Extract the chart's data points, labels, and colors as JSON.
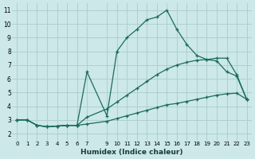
{
  "xlabel": "Humidex (Indice chaleur)",
  "bg_color": "#cce8e8",
  "grid_color": "#aacccc",
  "line_color": "#1a6b5a",
  "xlim": [
    -0.5,
    23.5
  ],
  "ylim": [
    1.5,
    11.5
  ],
  "xticks": [
    0,
    1,
    2,
    3,
    4,
    5,
    6,
    7,
    9,
    10,
    11,
    12,
    13,
    14,
    15,
    16,
    17,
    18,
    19,
    20,
    21,
    22,
    23
  ],
  "yticks": [
    2,
    3,
    4,
    5,
    6,
    7,
    8,
    9,
    10,
    11
  ],
  "series1_x": [
    0,
    1,
    2,
    3,
    4,
    5,
    6,
    7,
    9,
    10,
    11,
    12,
    13,
    14,
    15,
    16,
    17,
    18,
    19,
    20,
    21,
    22,
    23
  ],
  "series1_y": [
    3.0,
    3.0,
    2.6,
    2.5,
    2.55,
    2.6,
    2.6,
    2.7,
    2.9,
    3.1,
    3.3,
    3.5,
    3.7,
    3.9,
    4.1,
    4.2,
    4.35,
    4.5,
    4.65,
    4.8,
    4.9,
    4.95,
    4.5
  ],
  "series2_x": [
    0,
    1,
    2,
    3,
    4,
    5,
    6,
    7,
    9,
    10,
    11,
    12,
    13,
    14,
    15,
    16,
    17,
    18,
    19,
    20,
    21,
    22,
    23
  ],
  "series2_y": [
    3.0,
    3.0,
    2.6,
    2.5,
    2.55,
    2.6,
    2.6,
    3.2,
    3.8,
    4.3,
    4.8,
    5.3,
    5.8,
    6.3,
    6.7,
    7.0,
    7.2,
    7.35,
    7.4,
    7.5,
    7.5,
    6.3,
    4.5
  ],
  "series3_x": [
    0,
    1,
    2,
    3,
    4,
    5,
    6,
    7,
    9,
    10,
    11,
    12,
    13,
    14,
    15,
    16,
    17,
    18,
    19,
    20,
    21,
    22,
    23
  ],
  "series3_y": [
    3.0,
    3.0,
    2.6,
    2.5,
    2.55,
    2.6,
    2.6,
    6.5,
    3.3,
    8.0,
    9.0,
    9.6,
    10.3,
    10.5,
    11.0,
    9.6,
    8.5,
    7.7,
    7.4,
    7.3,
    6.5,
    6.2,
    4.5
  ]
}
